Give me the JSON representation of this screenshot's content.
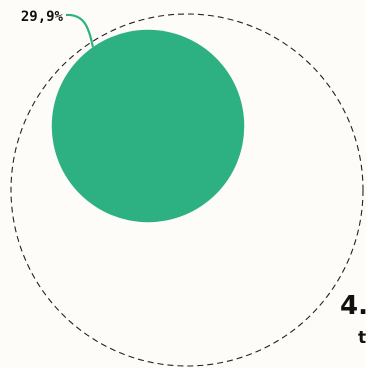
{
  "chart_data": {
    "type": "proportional-area",
    "series": [
      {
        "name": "",
        "value": 29.9,
        "label": "29,9%"
      }
    ],
    "total": {
      "value_label": "4.",
      "unit_label": "t"
    },
    "colors": {
      "part": "#2db183",
      "outline": "#222222",
      "leader": "#2db183"
    }
  }
}
